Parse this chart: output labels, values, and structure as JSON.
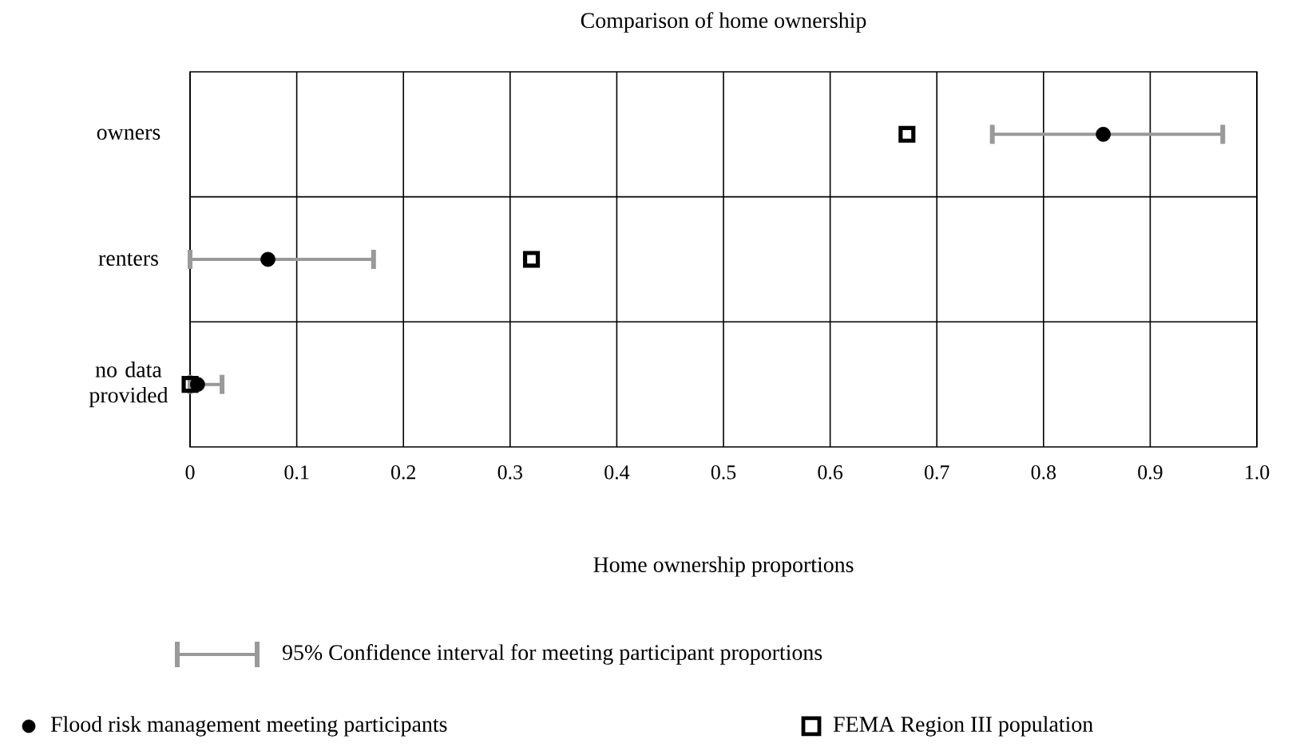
{
  "chart_data": {
    "type": "scatter",
    "title": "Comparison of home ownership",
    "xlabel": "Home ownership proportions",
    "orientation": "horizontal",
    "categories": [
      "owners",
      "renters",
      "no data provided"
    ],
    "xlim": [
      0,
      1.0
    ],
    "xticks": [
      {
        "value": 0,
        "label": "0"
      },
      0.1,
      0.2,
      0.3,
      0.4,
      0.5,
      0.6,
      0.7,
      0.8,
      0.9,
      {
        "value": 1,
        "label": "1.0"
      }
    ],
    "grid": true,
    "legend": "bottom",
    "series": [
      {
        "name": "Flood risk management meeting participants",
        "color": "#000000",
        "marker": "circle",
        "values": [
          0.856,
          0.073,
          0.007
        ],
        "errors": [
          [
            0.752,
            0.968
          ],
          [
            0,
            0.172
          ],
          [
            0,
            0.03
          ]
        ]
      },
      {
        "name": "FEMA Region III population",
        "color": "#000000",
        "marker": "square",
        "values": [
          0.672,
          0.32,
          0.0
        ]
      }
    ],
    "annotations": [
      "95% Confidence interval for meeting participant proportions"
    ]
  }
}
